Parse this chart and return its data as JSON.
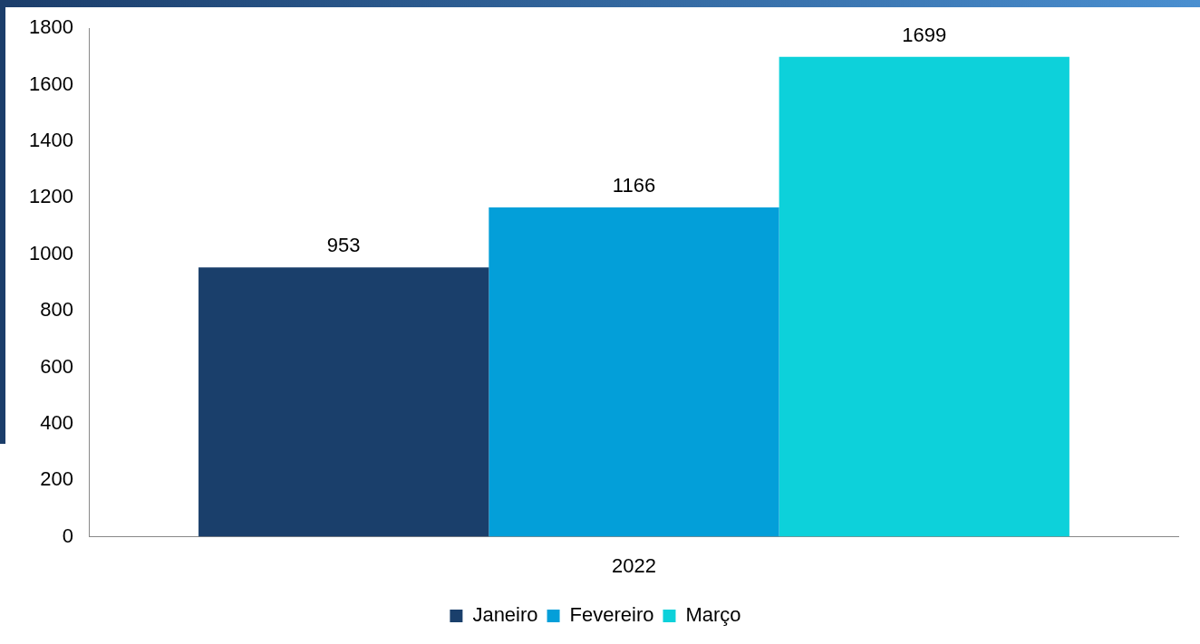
{
  "chart_data": {
    "type": "bar",
    "categories": [
      "2022"
    ],
    "series": [
      {
        "name": "Janeiro",
        "color": "#1a3f6b",
        "values": [
          953
        ]
      },
      {
        "name": "Fevereiro",
        "color": "#039fd9",
        "values": [
          1166
        ]
      },
      {
        "name": "Março",
        "color": "#0dd1da",
        "values": [
          1699
        ]
      }
    ],
    "ylim": [
      0,
      1800
    ],
    "yticks": [
      0,
      200,
      400,
      600,
      800,
      1000,
      1200,
      1400,
      1600,
      1800
    ],
    "grid": false,
    "legend": "bottom",
    "data_labels": true
  }
}
